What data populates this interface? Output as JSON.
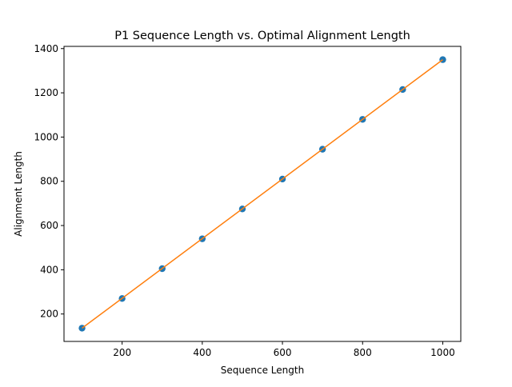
{
  "chart_data": {
    "type": "scatter",
    "title": "P1 Sequence Length vs. Optimal Alignment Length",
    "xlabel": "Sequence Length",
    "ylabel": "Alignment Length",
    "xlim": [
      55,
      1045
    ],
    "ylim": [
      76,
      1410
    ],
    "xticks": [
      200,
      400,
      600,
      800,
      1000
    ],
    "yticks": [
      200,
      400,
      600,
      800,
      1000,
      1200,
      1400
    ],
    "grid": false,
    "legend": "none",
    "series": [
      {
        "kind": "scatter",
        "color": "#1f77b4",
        "x": [
          100,
          200,
          300,
          400,
          500,
          600,
          700,
          800,
          900,
          1000
        ],
        "y": [
          136,
          270,
          405,
          540,
          675,
          810,
          945,
          1080,
          1215,
          1350
        ]
      },
      {
        "kind": "line",
        "color": "#ff7f0e",
        "x": [
          100,
          1000
        ],
        "y": [
          136,
          1350
        ]
      }
    ]
  }
}
